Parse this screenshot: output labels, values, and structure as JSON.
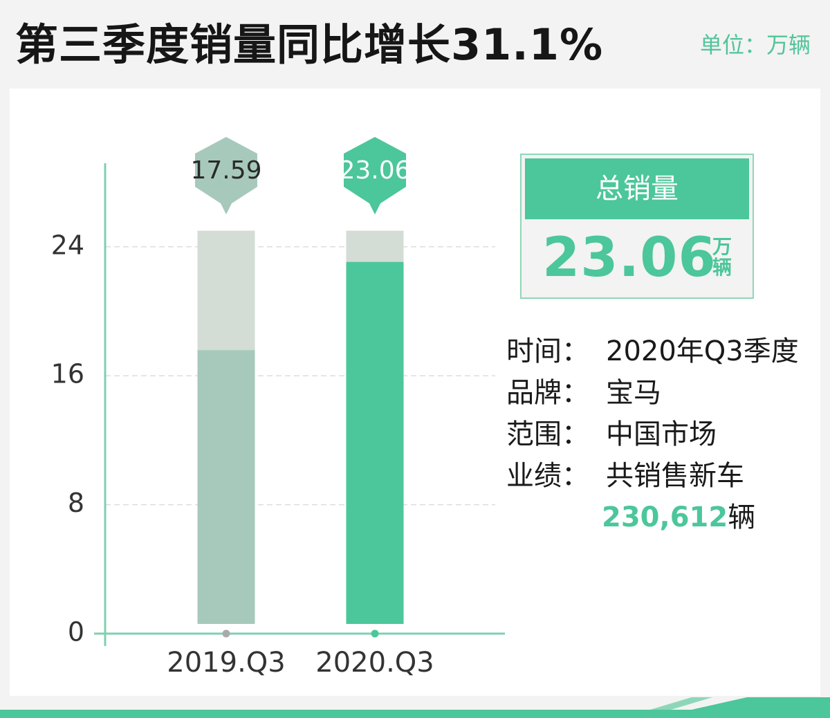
{
  "header": {
    "title": "第三季度销量同比增长31.1%",
    "unit": "单位：万辆"
  },
  "chart_data": {
    "type": "bar",
    "categories": [
      "2019.Q3",
      "2020.Q3"
    ],
    "values": [
      17.59,
      23.06
    ],
    "value_labels": [
      "17.59",
      "23.06"
    ],
    "background_max": 25,
    "ylim": [
      0,
      27
    ],
    "yticks": [
      0,
      8,
      16,
      24
    ],
    "ytick_labels": [
      "0",
      "8",
      "16",
      "24"
    ],
    "grid": "dashed horizontal",
    "colors": {
      "bar_2019": "#a7c9bc",
      "bar_2020": "#4cc69b",
      "bar_track": "#d3ddd6",
      "axis": "#7fd0b1",
      "grid": "#dddddd"
    }
  },
  "summary": {
    "heading": "总销量",
    "value": "23.06",
    "unit": "万辆"
  },
  "info": {
    "rows": [
      {
        "label": "时间：",
        "value": "2020年Q3季度"
      },
      {
        "label": "品牌：",
        "value": "宝马"
      },
      {
        "label": "范围：",
        "value": "中国市场"
      },
      {
        "label": "业绩：",
        "value": "共销售新车"
      }
    ],
    "total_number": "230,612",
    "total_unit": "辆"
  },
  "accent_color": "#4cc69b"
}
